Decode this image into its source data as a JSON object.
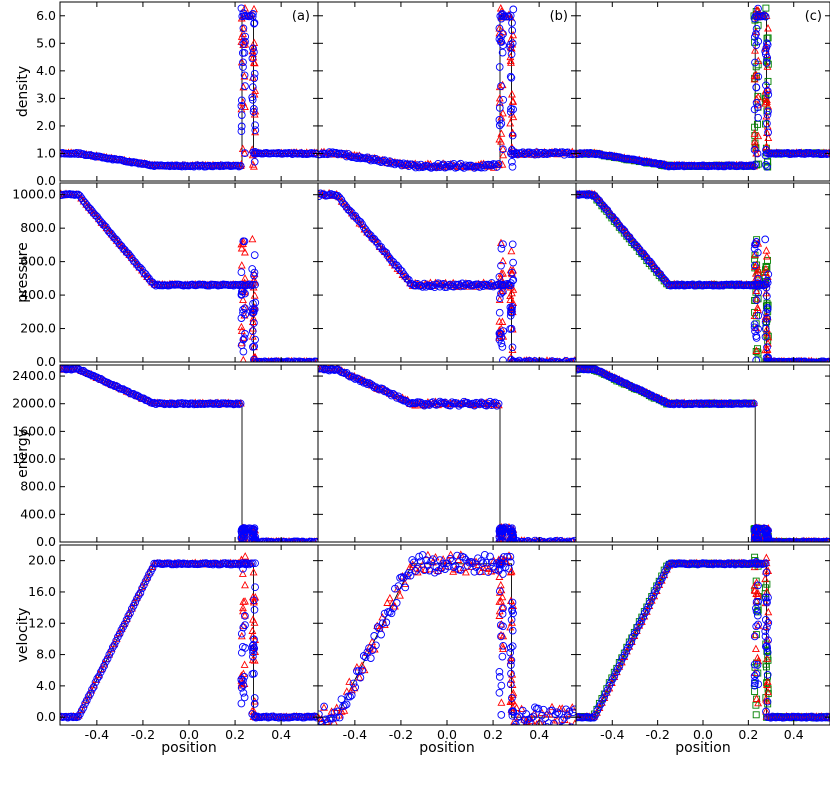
{
  "chart_data": {
    "type": "scatter",
    "xlabel": "position",
    "xlim": [
      -0.56,
      0.56
    ],
    "x_ticks": [
      "-0.4",
      "-0.2",
      "0.0",
      "0.2",
      "0.4"
    ],
    "x_tick_values": [
      -0.4,
      -0.2,
      0.0,
      0.2,
      0.4
    ],
    "columns": [
      "(a)",
      "(b)",
      "(c)"
    ],
    "rows": [
      {
        "ylabel": "density",
        "ylim": [
          0,
          6.5
        ],
        "tick_values": [
          0,
          1,
          2,
          3,
          4,
          5,
          6
        ],
        "ticks": [
          "0.0",
          "1.0",
          "2.0",
          "3.0",
          "4.0",
          "5.0",
          "6.0"
        ]
      },
      {
        "ylabel": "pressure",
        "ylim": [
          0,
          1070
        ],
        "tick_values": [
          0,
          200,
          400,
          600,
          800,
          1000
        ],
        "ticks": [
          "0.0",
          "200.0",
          "400.0",
          "600.0",
          "800.0",
          "1000.0"
        ]
      },
      {
        "ylabel": "energy",
        "ylim": [
          0,
          2560
        ],
        "tick_values": [
          0,
          400,
          800,
          1200,
          1600,
          2000,
          2400
        ],
        "ticks": [
          "0.0",
          "400.0",
          "800.0",
          "1200.0",
          "1600.0",
          "2000.0",
          "2400.0"
        ]
      },
      {
        "ylabel": "velocity",
        "ylim": [
          -1,
          22
        ],
        "tick_values": [
          0,
          4,
          8,
          12,
          16,
          20
        ],
        "ticks": [
          "0.0",
          "4.0",
          "8.0",
          "12.0",
          "16.0",
          "20.0"
        ]
      }
    ],
    "reference_curve": {
      "density": {
        "x": [
          -0.56,
          -0.48,
          -0.15,
          0.23,
          0.23,
          0.28,
          0.28,
          0.56
        ],
        "y": [
          1.0,
          1.0,
          0.55,
          0.55,
          5.99,
          5.99,
          1.0,
          1.0
        ]
      },
      "pressure": {
        "x": [
          -0.56,
          -0.48,
          -0.15,
          0.28,
          0.28,
          0.56
        ],
        "y": [
          1000,
          1000,
          460,
          460,
          0.01,
          0.01
        ]
      },
      "energy": {
        "x": [
          -0.56,
          -0.48,
          -0.15,
          0.23,
          0.23,
          0.28,
          0.28,
          0.56
        ],
        "y": [
          2500,
          2500,
          2000,
          2000,
          192,
          192,
          0.025,
          0.025
        ]
      },
      "velocity": {
        "x": [
          -0.56,
          -0.48,
          -0.15,
          0.28,
          0.28,
          0.56
        ],
        "y": [
          0,
          0,
          19.6,
          19.6,
          0,
          0
        ]
      }
    },
    "series": [
      {
        "marker": "circle",
        "color": "#0000ff"
      },
      {
        "marker": "triangle",
        "color": "#ff0000"
      },
      {
        "marker": "square",
        "color": "#008000"
      }
    ],
    "grid": false
  }
}
